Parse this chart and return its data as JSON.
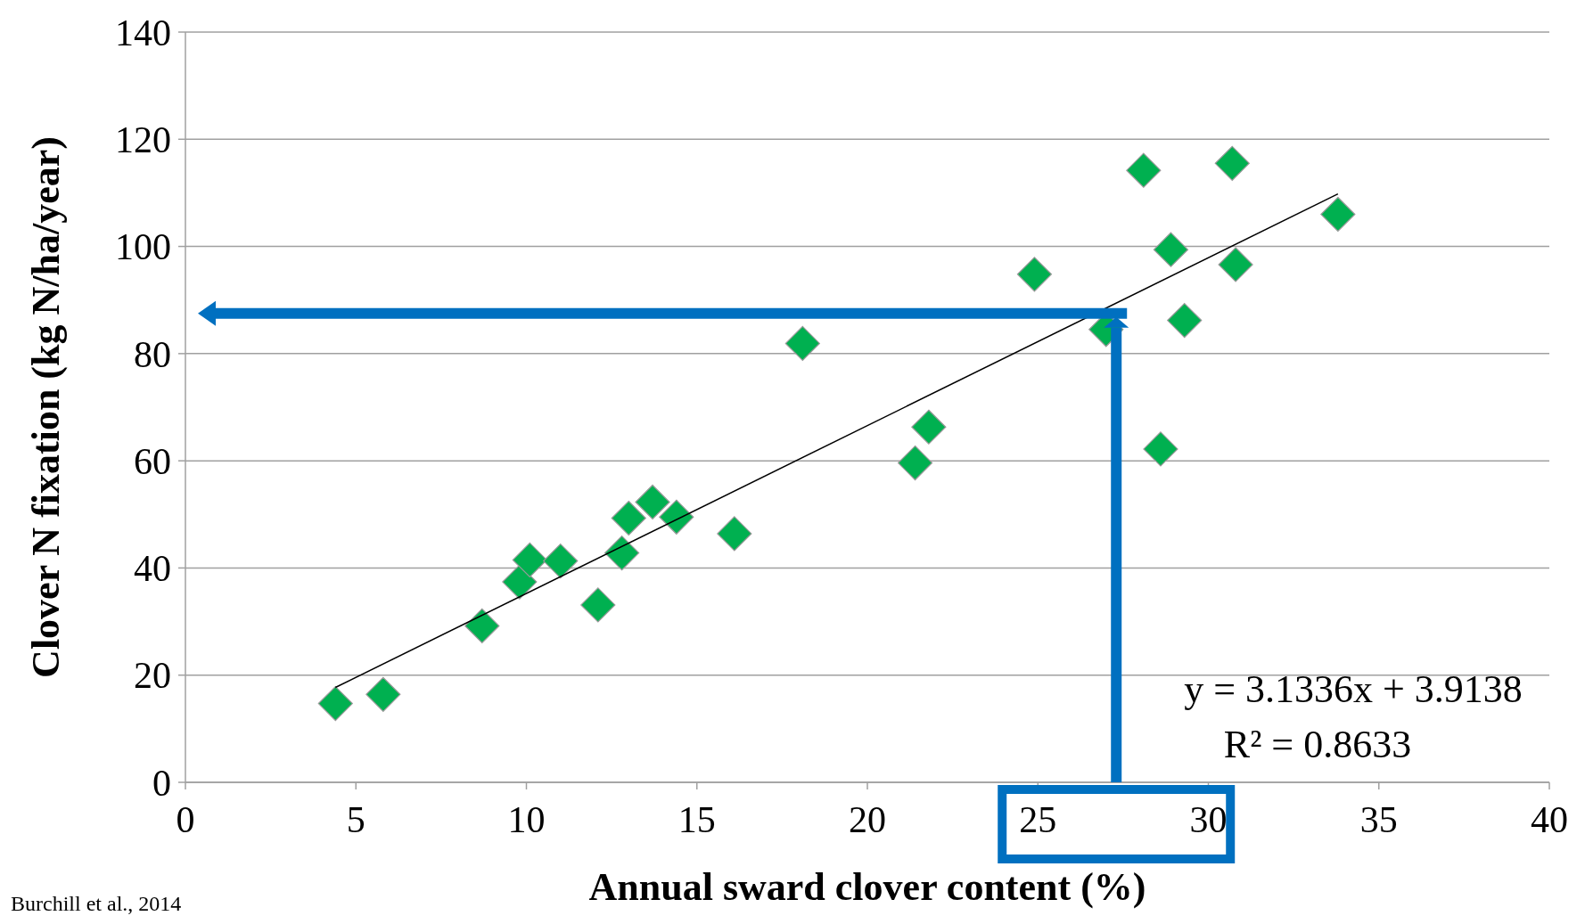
{
  "chart_data": {
    "type": "scatter",
    "xlabel": "Annual sward clover content (%)",
    "ylabel": "Clover N fixation (kg N/ha/year)",
    "xlim": [
      0,
      40
    ],
    "xticks": [
      0,
      5,
      10,
      15,
      20,
      25,
      30,
      35,
      40
    ],
    "ylim": [
      0,
      140
    ],
    "yticks": [
      0,
      20,
      40,
      60,
      80,
      100,
      120,
      140
    ],
    "grid": "y",
    "marker": "diamond",
    "series": [
      {
        "color": "#00b050",
        "x": [
          4.4,
          5.8,
          8.7,
          9.8,
          10.1,
          11.0,
          12.1,
          12.8,
          13.0,
          13.7,
          14.4,
          16.1,
          18.1,
          21.4,
          21.8,
          24.9,
          27.0,
          28.1,
          28.6,
          28.9,
          29.3,
          30.7,
          30.8,
          33.8
        ],
        "values": [
          14.7,
          16.4,
          29.2,
          37.4,
          41.5,
          41.3,
          33.1,
          42.8,
          49.3,
          52.3,
          49.5,
          46.4,
          81.9,
          59.6,
          66.3,
          94.8,
          84.5,
          114.2,
          62.2,
          99.4,
          86.2,
          115.5,
          96.6,
          106.0
        ]
      },
      {
        "type": "line",
        "marker": "none",
        "color": "#000000",
        "x": [
          4.4,
          33.8
        ],
        "values": [
          17.7,
          109.8
        ]
      }
    ],
    "ref_lines": [
      {
        "axis": "y",
        "value": 87.5,
        "color": "#0070c0"
      },
      {
        "axis": "x",
        "value": 27.3,
        "color": "#0070c0"
      }
    ],
    "annotations": [
      "y = 3.1336x + 3.9138",
      "R² = 0.8633",
      "Burchill et al., 2014"
    ]
  }
}
